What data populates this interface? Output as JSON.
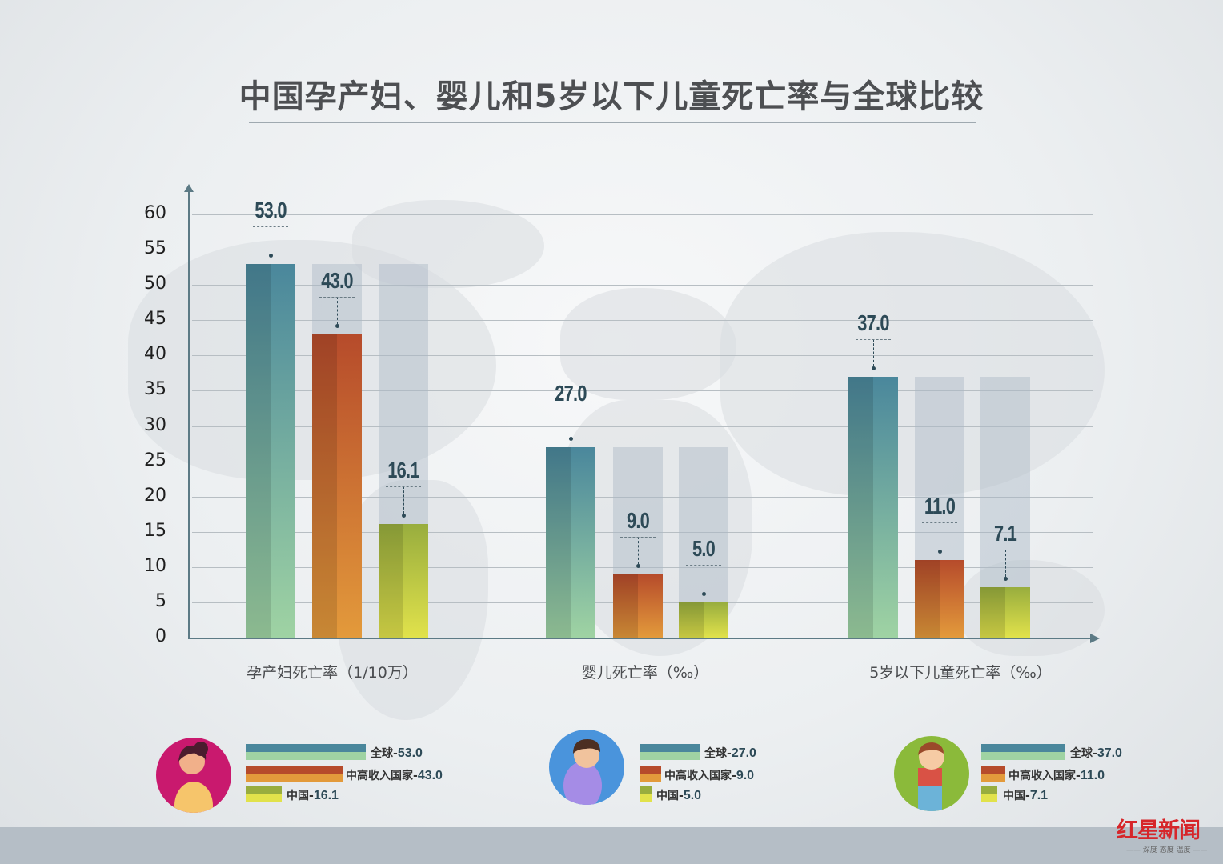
{
  "title": "中国孕产妇、婴儿和5岁以下儿童死亡率与全球比较",
  "colors": {
    "global": [
      "#4a879c",
      "#9fd3a3"
    ],
    "upper_middle": [
      "#b64b2b",
      "#e39a3b"
    ],
    "china": [
      "#98ad3e",
      "#e1e24b"
    ],
    "value_label": "#2d4a57",
    "axis": "#5c7a85"
  },
  "chart_data": {
    "type": "bar",
    "title": "中国孕产妇、婴儿和5岁以下儿童死亡率与全球比较",
    "xlabel": "",
    "ylabel": "",
    "ylim": [
      0,
      60
    ],
    "yticks": [
      0,
      5,
      10,
      15,
      20,
      25,
      30,
      35,
      40,
      45,
      50,
      55,
      60
    ],
    "grid": true,
    "legend_position": "bottom",
    "categories": [
      "孕产妇死亡率（1/10万）",
      "婴儿死亡率（‰）",
      "5岁以下儿童死亡率（‰）"
    ],
    "series": [
      {
        "name": "全球",
        "values": [
          53.0,
          27.0,
          37.0
        ]
      },
      {
        "name": "中高收入国家",
        "values": [
          43.0,
          9.0,
          11.0
        ]
      },
      {
        "name": "中国",
        "values": [
          16.1,
          5.0,
          7.1
        ]
      }
    ]
  },
  "value_labels": {
    "g0": [
      "53.0",
      "43.0",
      "16.1"
    ],
    "g1": [
      "27.0",
      "9.0",
      "5.0"
    ],
    "g2": [
      "37.0",
      "11.0",
      "7.1"
    ]
  },
  "legends": [
    {
      "icon": "pregnant-woman-icon",
      "items": [
        {
          "label": "全球-",
          "value": "53.0"
        },
        {
          "label": "中高收入国家-",
          "value": "43.0"
        },
        {
          "label": "中国-",
          "value": "16.1"
        }
      ]
    },
    {
      "icon": "swaddled-baby-icon",
      "items": [
        {
          "label": "全球-",
          "value": "27.0"
        },
        {
          "label": "中高收入国家-",
          "value": "9.0"
        },
        {
          "label": "中国-",
          "value": "5.0"
        }
      ]
    },
    {
      "icon": "toddler-icon",
      "items": [
        {
          "label": "全球-",
          "value": "37.0"
        },
        {
          "label": "中高收入国家-",
          "value": "11.0"
        },
        {
          "label": "中国-",
          "value": "7.1"
        }
      ]
    }
  ],
  "logo": {
    "main": "红星新闻",
    "sub": "—— 深度 态度 温度 ——"
  }
}
